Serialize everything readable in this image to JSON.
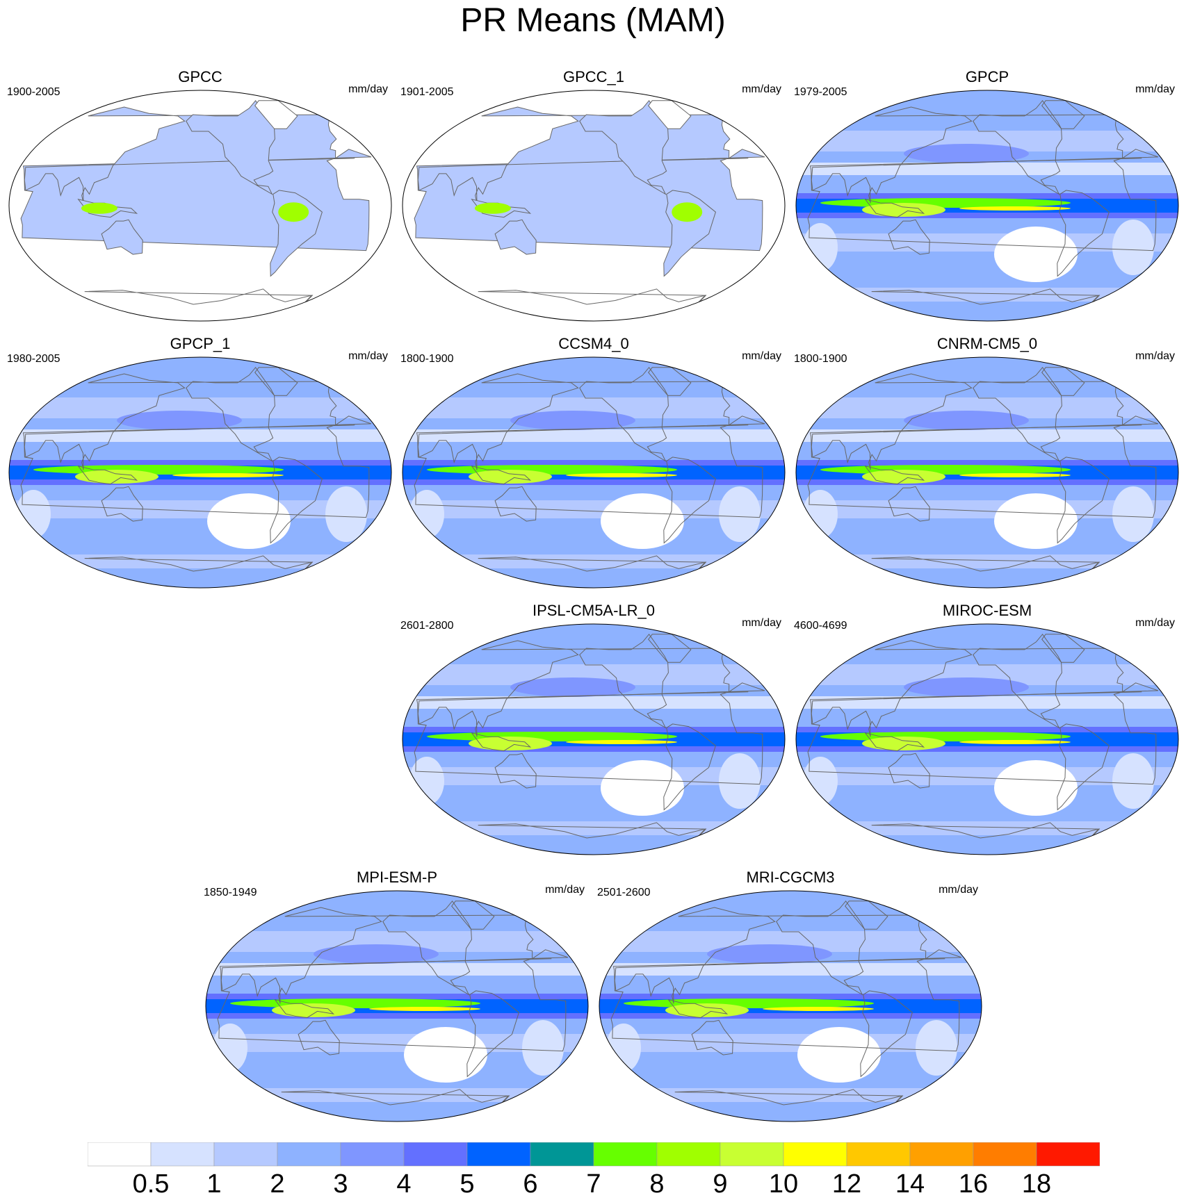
{
  "title": "PR Means (MAM)",
  "units": "mm/day",
  "colorbar": {
    "colors": [
      "#ffffff",
      "#d6e2ff",
      "#b5c9ff",
      "#8eb2ff",
      "#7f96ff",
      "#6370ff",
      "#0063ff",
      "#009696",
      "#66ff00",
      "#a0ff00",
      "#c8ff32",
      "#ffff00",
      "#ffc800",
      "#ffa000",
      "#ff7d00",
      "#ff1900"
    ],
    "labels": [
      "0.5",
      "1",
      "2",
      "3",
      "4",
      "5",
      "6",
      "7",
      "8",
      "9",
      "10",
      "12",
      "14",
      "16",
      "18"
    ]
  },
  "panels": [
    {
      "name": "GPCC",
      "period": "1900-2005",
      "ocean_data": false
    },
    {
      "name": "GPCC_1",
      "period": "1901-2005",
      "ocean_data": false
    },
    {
      "name": "GPCP",
      "period": "1979-2005",
      "ocean_data": true
    },
    {
      "name": "GPCP_1",
      "period": "1980-2005",
      "ocean_data": true
    },
    {
      "name": "CCSM4_0",
      "period": "1800-1900",
      "ocean_data": true
    },
    {
      "name": "CNRM-CM5_0",
      "period": "1800-1900",
      "ocean_data": true
    },
    {
      "name": "IPSL-CM5A-LR_0",
      "period": "2601-2800",
      "ocean_data": true
    },
    {
      "name": "MIROC-ESM",
      "period": "4600-4699",
      "ocean_data": true
    },
    {
      "name": "MPI-ESM-P",
      "period": "1850-1949",
      "ocean_data": true
    },
    {
      "name": "MRI-CGCM3",
      "period": "2501-2600",
      "ocean_data": true
    }
  ]
}
